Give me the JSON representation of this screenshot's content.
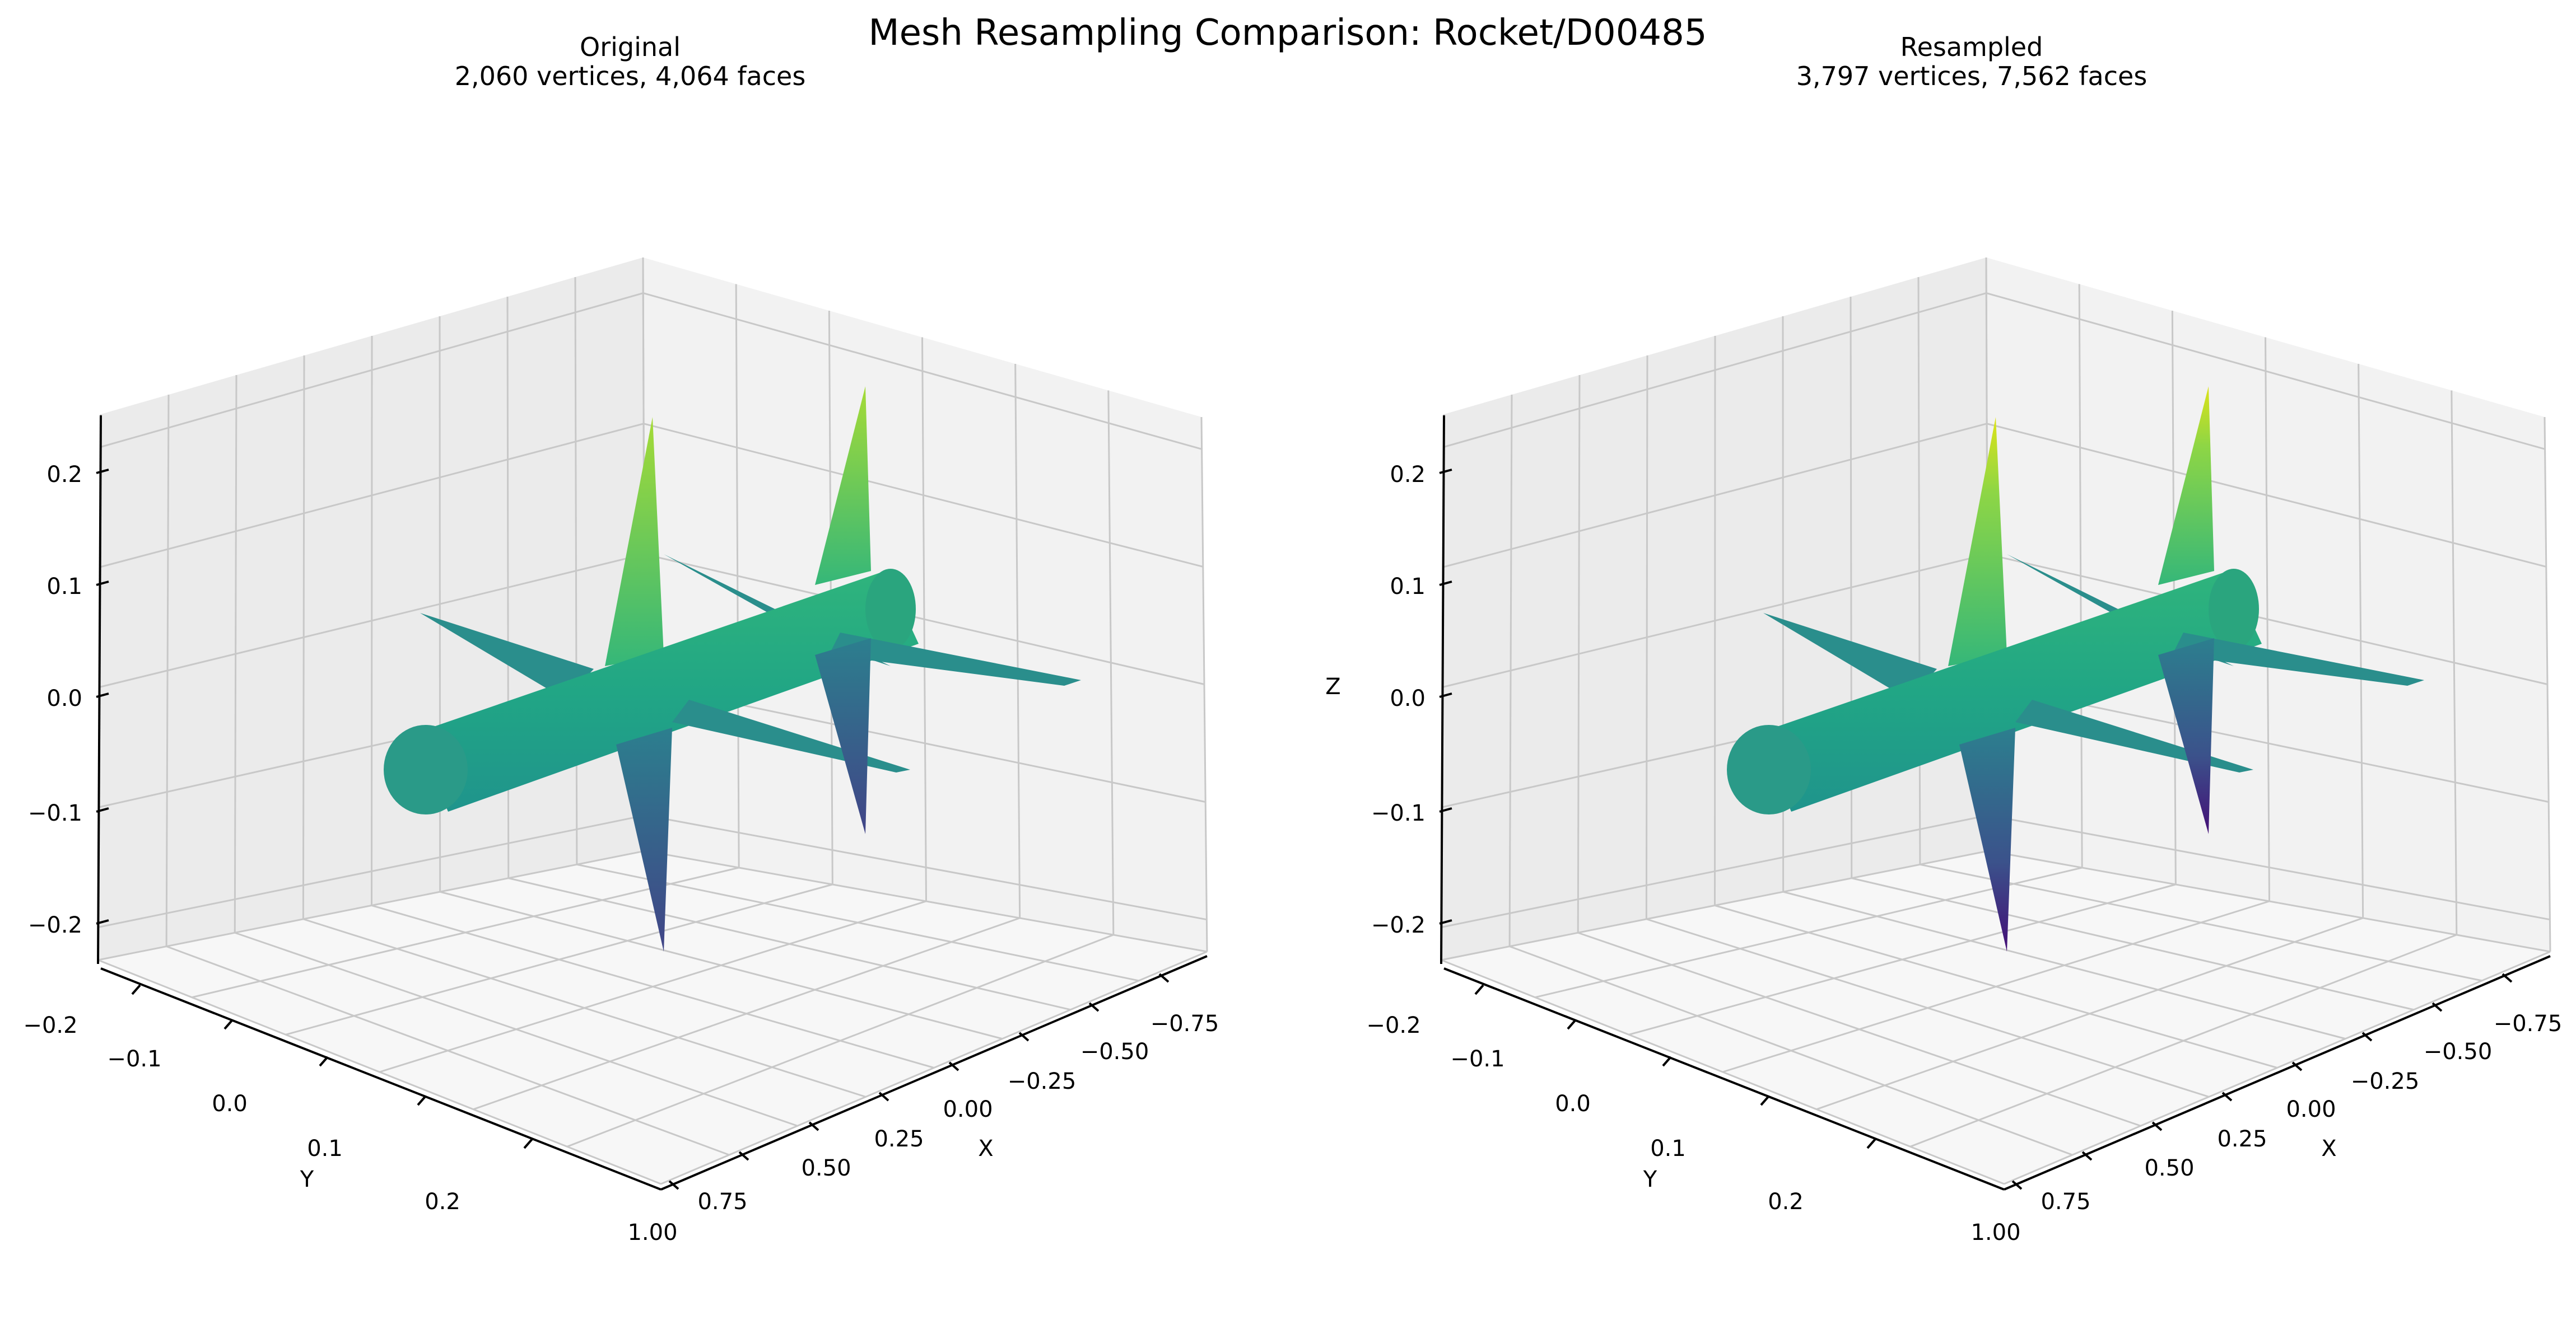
{
  "figure": {
    "title": "Mesh Resampling Comparison: Rocket/D00485"
  },
  "chart_data": [
    {
      "type": "3d-surface",
      "title": "Original",
      "subtitle": "2,060 vertices, 4,064 faces",
      "xlabel": "X",
      "ylabel": "Y",
      "zlabel": "",
      "x_ticks": [
        "1.00",
        "0.75",
        "0.50",
        "0.25",
        "0.00",
        "−0.25",
        "−0.50",
        "−0.75"
      ],
      "y_ticks": [
        "−0.2",
        "−0.1",
        "0.0",
        "0.1",
        "0.2"
      ],
      "z_ticks": [
        "0.2",
        "0.1",
        "0.0",
        "−0.1",
        "−0.2"
      ],
      "xlim": [
        -0.85,
        1.05
      ],
      "ylim": [
        -0.24,
        0.24
      ],
      "zlim": [
        -0.24,
        0.24
      ],
      "grid": true,
      "colormap": "viridis",
      "stats": {
        "vertices": 2060,
        "faces": 4064
      }
    },
    {
      "type": "3d-surface",
      "title": "Resampled",
      "subtitle": "3,797 vertices, 7,562 faces",
      "xlabel": "X",
      "ylabel": "Y",
      "zlabel": "Z",
      "x_ticks": [
        "1.00",
        "0.75",
        "0.50",
        "0.25",
        "0.00",
        "−0.25",
        "−0.50",
        "−0.75"
      ],
      "y_ticks": [
        "−0.2",
        "−0.1",
        "0.0",
        "0.1",
        "0.2"
      ],
      "z_ticks": [
        "0.2",
        "0.1",
        "0.0",
        "−0.1",
        "−0.2"
      ],
      "xlim": [
        -0.85,
        1.05
      ],
      "ylim": [
        -0.24,
        0.24
      ],
      "zlim": [
        -0.24,
        0.24
      ],
      "grid": true,
      "colormap": "viridis",
      "stats": {
        "vertices": 3797,
        "faces": 7562
      }
    }
  ],
  "colors": {
    "pane_back": "#ebebeb",
    "pane_side": "#f2f2f2",
    "pane_floor": "#f7f7f7",
    "grid": "#c8c8c8",
    "axis": "#000000",
    "body": "#25a184",
    "body_edge": "#1f9a8a",
    "fin_horizontal": "#2a8e8c",
    "fin_top": "#63c866",
    "fin_top_tip": "#b6de2b",
    "fin_bottom": "#3c5a8f",
    "fin_bottom_tip": "#3f2a78"
  }
}
